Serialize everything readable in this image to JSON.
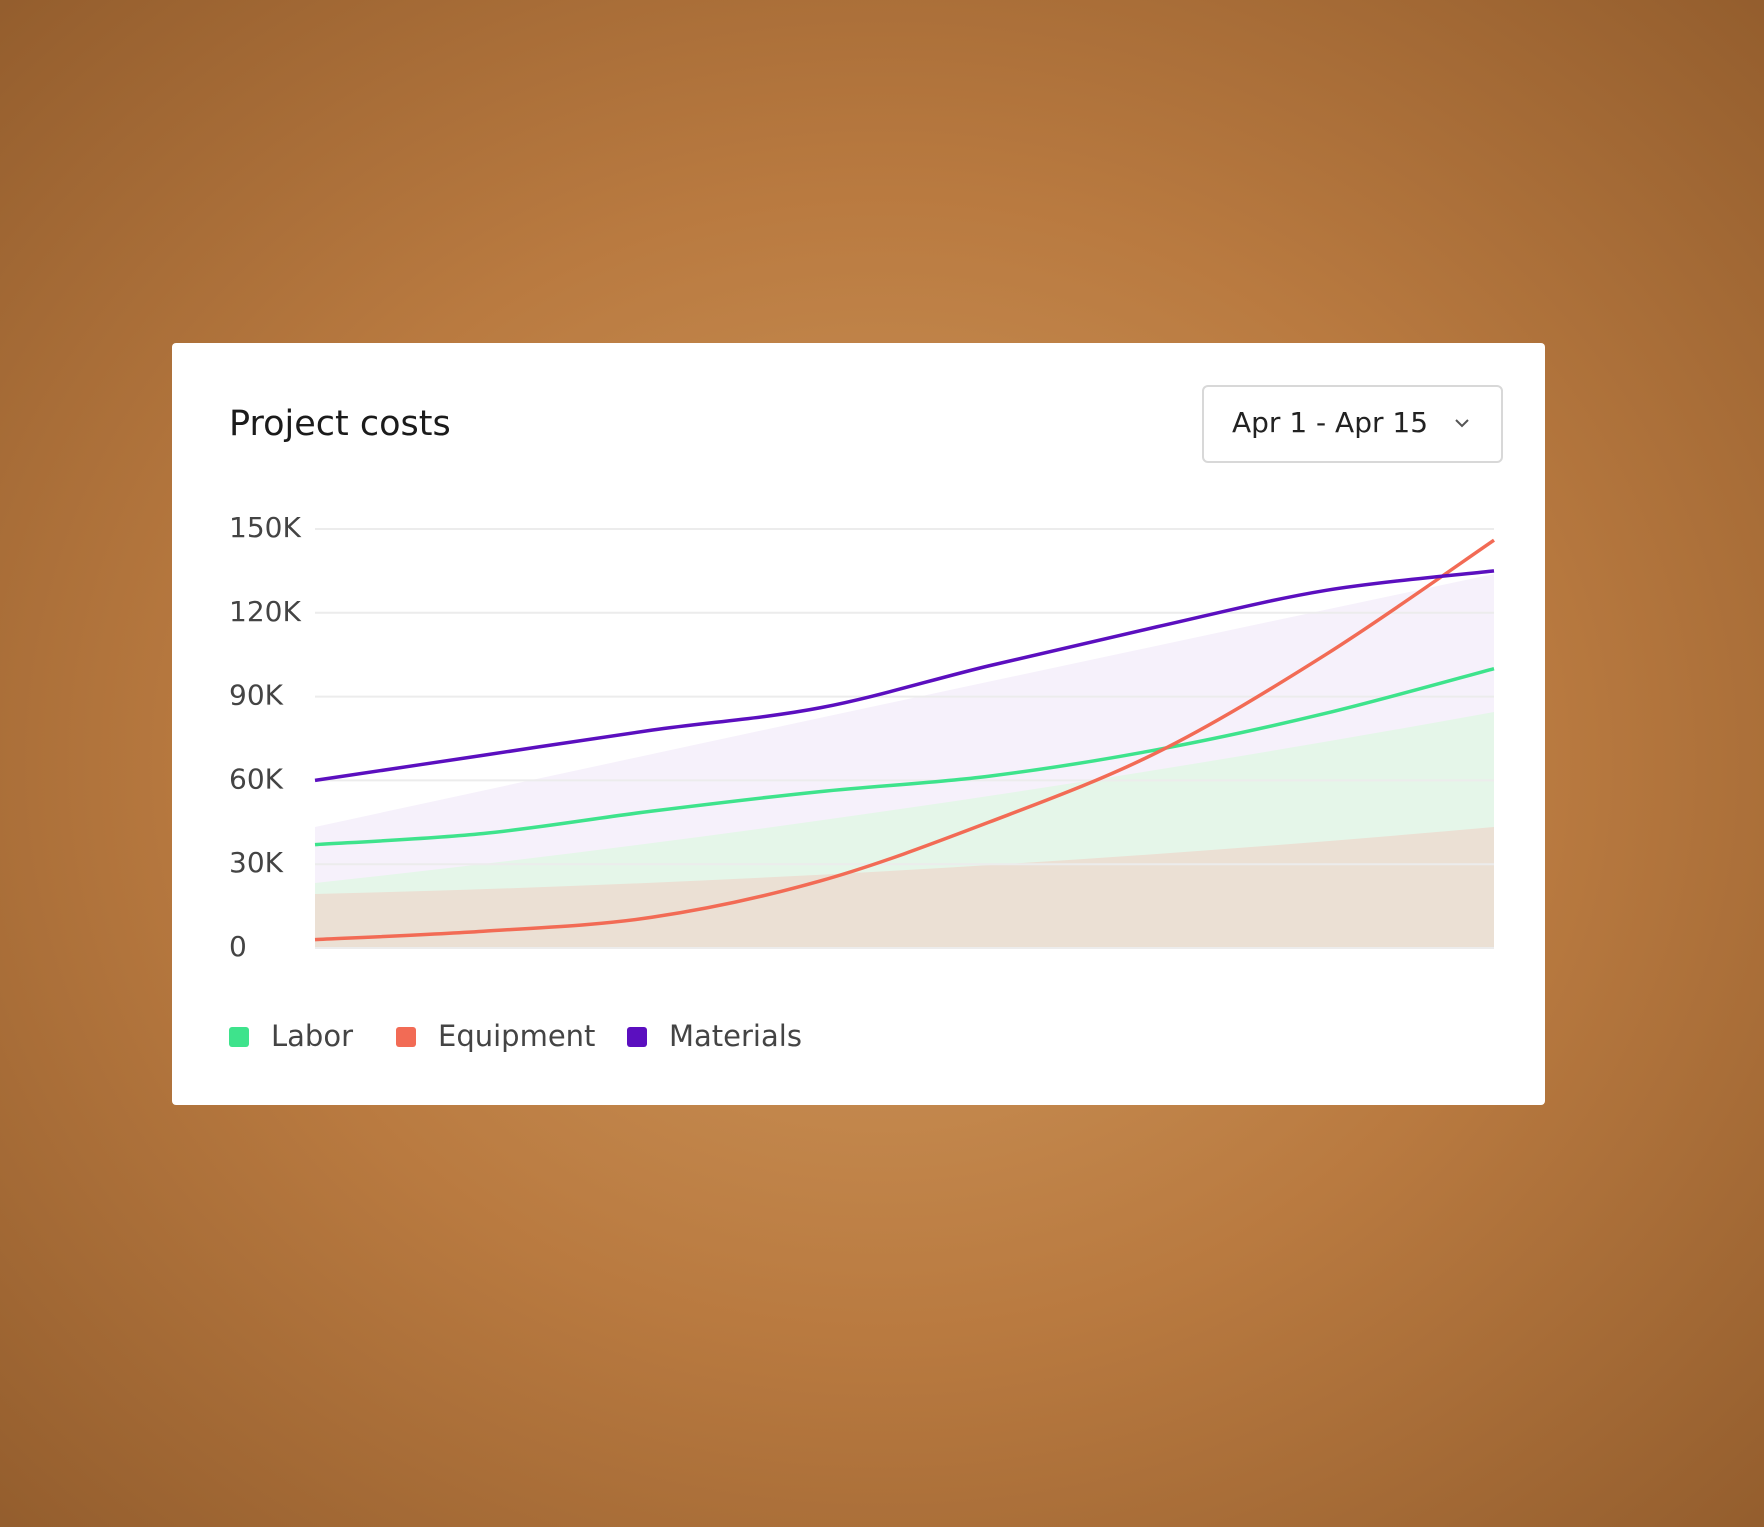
{
  "chart_data": {
    "type": "line",
    "title": "Project costs",
    "date_range": "Apr 1 - Apr 15",
    "categories": [
      null,
      null,
      null,
      null,
      null,
      null,
      null,
      null
    ],
    "series": [
      {
        "name": "Labor",
        "color": "#3ee38c",
        "values": [
          37000,
          41000,
          49000,
          56000,
          61500,
          71000,
          84000,
          100000
        ]
      },
      {
        "name": "Equipment",
        "color": "#f26b55",
        "values": [
          3000,
          6000,
          11000,
          24000,
          45000,
          70000,
          105000,
          146000
        ]
      },
      {
        "name": "Materials",
        "color": "#5b0fbf",
        "values": [
          60000,
          69000,
          78000,
          86000,
          101000,
          115000,
          128000,
          135000
        ]
      }
    ],
    "ylim": [
      0,
      150000
    ],
    "yticks": [
      0,
      {
        "value": 30000,
        "label": "30K"
      },
      {
        "value": 60000,
        "label": "60K"
      },
      {
        "value": 90000,
        "label": "90K"
      },
      {
        "value": 120000,
        "label": "120K"
      },
      {
        "value": 150000,
        "label": "150K"
      }
    ],
    "grid": true
  }
}
